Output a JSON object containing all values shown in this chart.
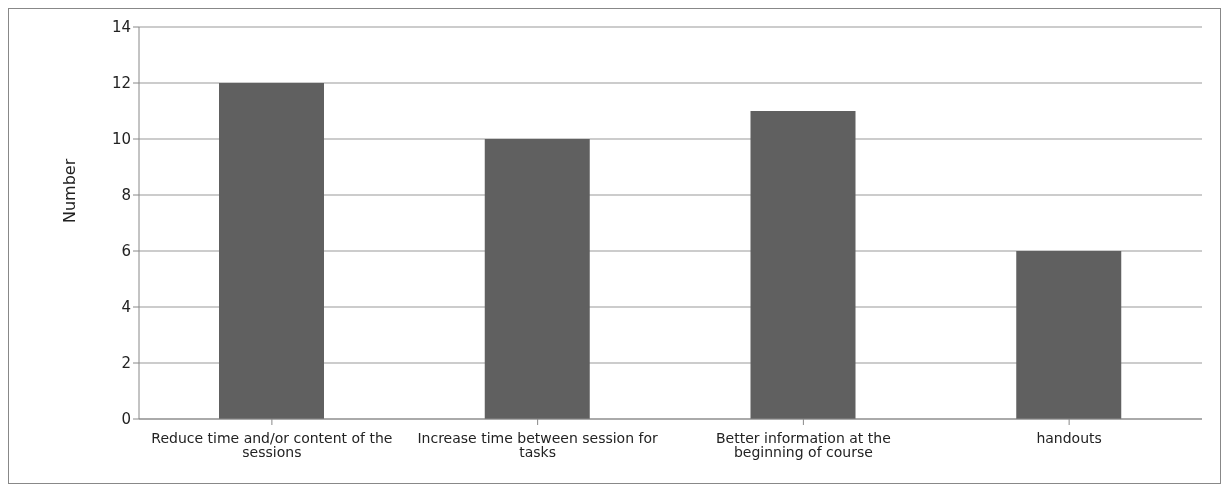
{
  "chart_data": {
    "type": "bar",
    "ylabel": "Number",
    "categories": [
      "Reduce time and/or content of the sessions",
      "Increase time between session for tasks",
      "Better information at the beginning of course",
      "handouts"
    ],
    "values": [
      12,
      10,
      11,
      6
    ],
    "color": "#606060",
    "ylim": [
      0,
      14
    ],
    "yticks": [
      0,
      2,
      4,
      6,
      8,
      10,
      12,
      14
    ],
    "grid": "y"
  }
}
